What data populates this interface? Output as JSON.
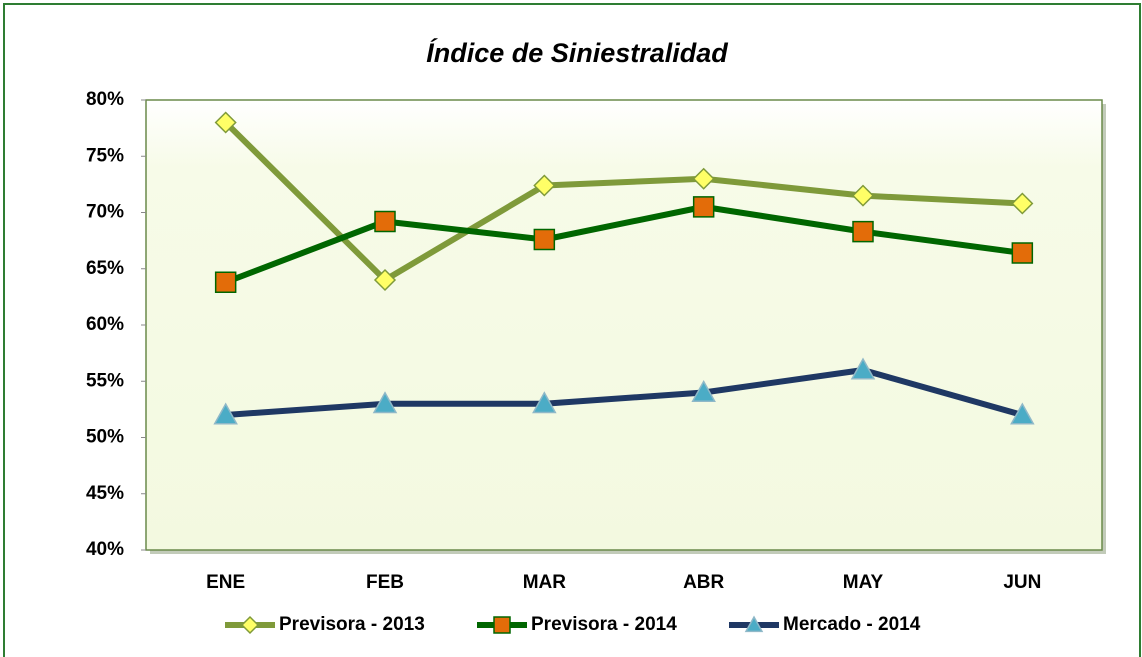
{
  "chart_data": {
    "type": "line",
    "title": "Índice de Siniestralidad",
    "categories": [
      "ENE",
      "FEB",
      "MAR",
      "ABR",
      "MAY",
      "JUN"
    ],
    "series": [
      {
        "name": "Previsora - 2013",
        "color": "#7f9a3a",
        "marker": "diamond",
        "marker_color": "#ffff66",
        "values": [
          78,
          64,
          72.4,
          73,
          71.5,
          70.8
        ]
      },
      {
        "name": "Previsora - 2014",
        "color": "#006600",
        "marker": "square",
        "marker_color": "#e36c09",
        "values": [
          63.8,
          69.2,
          67.6,
          70.5,
          68.3,
          66.4
        ]
      },
      {
        "name": "Mercado - 2014",
        "color": "#1f3864",
        "marker": "triangle",
        "marker_color": "#4bacc6",
        "values": [
          52,
          53,
          53,
          54,
          56,
          52
        ]
      }
    ],
    "ylim": [
      40,
      80
    ],
    "yticks": [
      {
        "value": 40,
        "label": "40%"
      },
      {
        "value": 45,
        "label": "45%"
      },
      {
        "value": 50,
        "label": "50%"
      },
      {
        "value": 55,
        "label": "55%"
      },
      {
        "value": 60,
        "label": "60%"
      },
      {
        "value": 65,
        "label": "65%"
      },
      {
        "value": 70,
        "label": "70%"
      },
      {
        "value": 75,
        "label": "75%"
      },
      {
        "value": 80,
        "label": "80%"
      }
    ],
    "grid": false,
    "legend": "bottom"
  }
}
